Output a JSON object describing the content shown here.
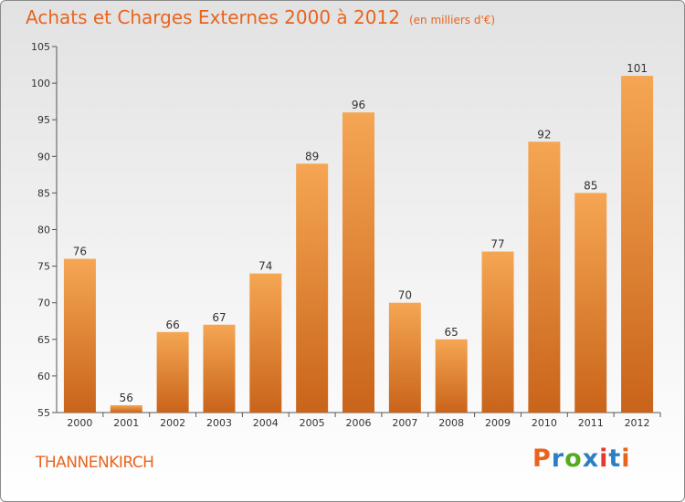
{
  "title": "Achats et Charges Externes 2000 à 2012",
  "subtitle": "(en milliers d'€)",
  "commune": "THANNENKIRCH",
  "logo": {
    "text": "Proxiti",
    "colors": [
      "#e8641e",
      "#2b7fc4",
      "#55aa22",
      "#2b7fc4",
      "#e33a2e",
      "#2b7fc4",
      "#e8641e"
    ]
  },
  "colors": {
    "bar_top": "#f5a653",
    "bar_bottom": "#c9641a",
    "accent": "#e8641e"
  },
  "chart_data": {
    "type": "bar",
    "categories": [
      "2000",
      "2001",
      "2002",
      "2003",
      "2004",
      "2005",
      "2006",
      "2007",
      "2008",
      "2009",
      "2010",
      "2011",
      "2012"
    ],
    "values": [
      76,
      56,
      66,
      67,
      74,
      89,
      96,
      70,
      65,
      77,
      92,
      85,
      101
    ],
    "ylim": [
      55,
      105
    ],
    "yticks": [
      55,
      60,
      65,
      70,
      75,
      80,
      85,
      90,
      95,
      100,
      105
    ],
    "grid": false,
    "title": "Achats et Charges Externes 2000 à 2012",
    "xlabel": "",
    "ylabel": ""
  }
}
